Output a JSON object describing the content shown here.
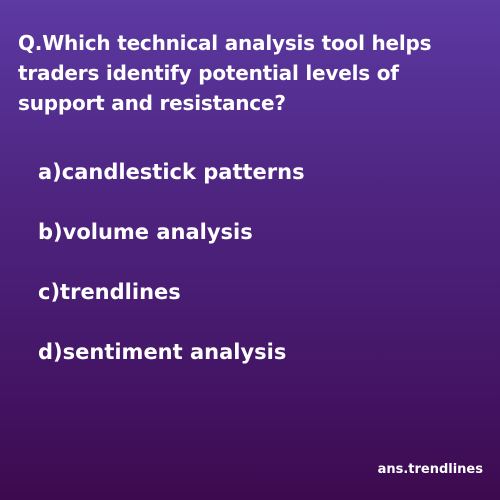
{
  "question": "Q.Which technical analysis tool helps traders identify potential levels of support and resistance?",
  "options": [
    "a)candlestick patterns",
    "b)volume analysis",
    "c)trendlines",
    "d)sentiment analysis"
  ],
  "answer": "ans.trendlines",
  "colors": {
    "background_top": "#5c3aa3",
    "background_bottom": "#3d0a4f",
    "text": "#ffffff"
  }
}
